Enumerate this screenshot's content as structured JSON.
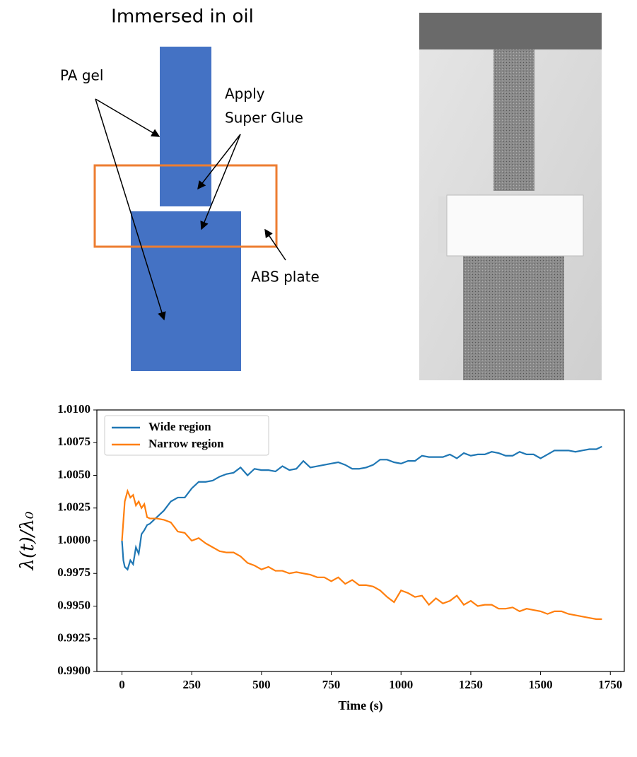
{
  "diagram": {
    "title": "Immersed in oil",
    "labels": {
      "pa_gel": "PA gel",
      "apply": "Apply",
      "super_glue": "Super Glue",
      "abs_plate": "ABS plate"
    }
  },
  "chart_data": {
    "type": "line",
    "xlabel": "Time (s)",
    "ylabel": "λ(t)/λ₀",
    "x": [
      0,
      5,
      10,
      20,
      30,
      40,
      50,
      60,
      70,
      80,
      90,
      100,
      125,
      150,
      175,
      200,
      225,
      250,
      275,
      300,
      325,
      350,
      375,
      400,
      425,
      450,
      475,
      500,
      525,
      550,
      575,
      600,
      625,
      650,
      675,
      700,
      725,
      750,
      775,
      800,
      825,
      850,
      875,
      900,
      925,
      950,
      975,
      1000,
      1025,
      1050,
      1075,
      1100,
      1125,
      1150,
      1175,
      1200,
      1225,
      1250,
      1275,
      1300,
      1325,
      1350,
      1375,
      1400,
      1425,
      1450,
      1475,
      1500,
      1525,
      1550,
      1575,
      1600,
      1625,
      1650,
      1675,
      1700,
      1720
    ],
    "series": [
      {
        "name": "Wide region",
        "color": "#1f77b4",
        "values": [
          1.0,
          0.9985,
          0.998,
          0.9978,
          0.9985,
          0.9982,
          0.9995,
          0.999,
          1.0005,
          1.0008,
          1.0012,
          1.0013,
          1.0018,
          1.0023,
          1.003,
          1.0033,
          1.0033,
          1.004,
          1.0045,
          1.0045,
          1.0046,
          1.0049,
          1.0051,
          1.0052,
          1.0056,
          1.005,
          1.0055,
          1.0054,
          1.0054,
          1.0053,
          1.0057,
          1.0054,
          1.0055,
          1.0061,
          1.0056,
          1.0057,
          1.0058,
          1.0059,
          1.006,
          1.0058,
          1.0055,
          1.0055,
          1.0056,
          1.0058,
          1.0062,
          1.0062,
          1.006,
          1.0059,
          1.0061,
          1.0061,
          1.0065,
          1.0064,
          1.0064,
          1.0064,
          1.0066,
          1.0063,
          1.0067,
          1.0065,
          1.0066,
          1.0066,
          1.0068,
          1.0067,
          1.0065,
          1.0065,
          1.0068,
          1.0066,
          1.0066,
          1.0063,
          1.0066,
          1.0069,
          1.0069,
          1.0069,
          1.0068,
          1.0069,
          1.007,
          1.007,
          1.0072
        ]
      },
      {
        "name": "Narrow region",
        "color": "#ff7f0e",
        "values": [
          1.0,
          1.0015,
          1.003,
          1.0038,
          1.0033,
          1.0035,
          1.0027,
          1.003,
          1.0025,
          1.0028,
          1.0018,
          1.0017,
          1.0017,
          1.0016,
          1.0014,
          1.0007,
          1.0006,
          1.0,
          1.0002,
          0.9998,
          0.9995,
          0.9992,
          0.9991,
          0.9991,
          0.9988,
          0.9983,
          0.9981,
          0.9978,
          0.998,
          0.9977,
          0.9977,
          0.9975,
          0.9976,
          0.9975,
          0.9974,
          0.9972,
          0.9972,
          0.9969,
          0.9972,
          0.9967,
          0.997,
          0.9966,
          0.9966,
          0.9965,
          0.9962,
          0.9957,
          0.9953,
          0.9962,
          0.996,
          0.9957,
          0.9958,
          0.9951,
          0.9956,
          0.9952,
          0.9954,
          0.9958,
          0.9951,
          0.9954,
          0.995,
          0.9951,
          0.9951,
          0.9948,
          0.9948,
          0.9949,
          0.9946,
          0.9948,
          0.9947,
          0.9946,
          0.9944,
          0.9946,
          0.9946,
          0.9944,
          0.9943,
          0.9942,
          0.9941,
          0.994,
          0.994
        ]
      }
    ],
    "xlim": [
      -90,
      1800
    ],
    "xticks": [
      0,
      250,
      500,
      750,
      1000,
      1250,
      1500,
      1750
    ],
    "ylim": [
      0.99,
      1.01
    ],
    "yticks": [
      {
        "value": 0.99,
        "label": "0.9900"
      },
      {
        "value": 0.9925,
        "label": "0.9925"
      },
      {
        "value": 0.995,
        "label": "0.9950"
      },
      {
        "value": 0.9975,
        "label": "0.9975"
      },
      {
        "value": 1.0,
        "label": "1.0000"
      },
      {
        "value": 1.0025,
        "label": "1.0025"
      },
      {
        "value": 1.005,
        "label": "1.0050"
      },
      {
        "value": 1.0075,
        "label": "1.0075"
      },
      {
        "value": 1.01,
        "label": "1.0100"
      }
    ],
    "legend": "upper left"
  }
}
